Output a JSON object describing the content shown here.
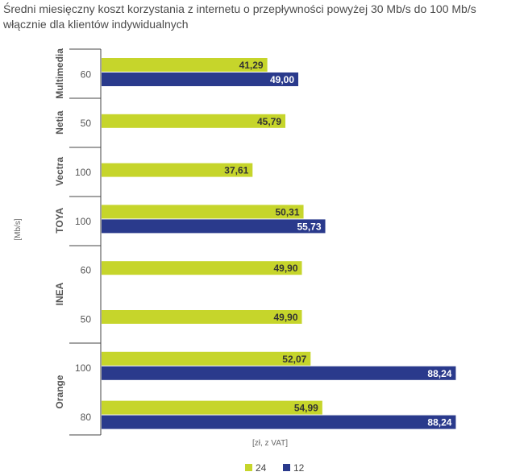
{
  "title": "Średni miesięczny koszt korzystania z internetu o przepływności powyżej 30 Mb/s do 100 Mb/s włącznie dla klientów indywidualnych",
  "colors": {
    "s24": "#c6d52b",
    "s12": "#2a3a8c",
    "text": "#555555"
  },
  "chart_data": {
    "type": "bar",
    "orientation": "horizontal",
    "ylabel": "[Mb/s]",
    "xlabel": "[zł, z VAT]",
    "legend_position": "bottom",
    "series_names": [
      "24",
      "12"
    ],
    "xlim": [
      0,
      100
    ],
    "groups": [
      {
        "provider": "Multimedia",
        "rows": [
          {
            "speed": "60",
            "v24": 41.29,
            "l24": "41,29",
            "v12": 49.0,
            "l12": "49,00"
          }
        ]
      },
      {
        "provider": "Netia",
        "rows": [
          {
            "speed": "50",
            "v24": 45.79,
            "l24": "45,79",
            "v12": null,
            "l12": ""
          }
        ]
      },
      {
        "provider": "Vectra",
        "rows": [
          {
            "speed": "100",
            "v24": 37.61,
            "l24": "37,61",
            "v12": null,
            "l12": ""
          }
        ]
      },
      {
        "provider": "TOYA",
        "rows": [
          {
            "speed": "100",
            "v24": 50.31,
            "l24": "50,31",
            "v12": 55.73,
            "l12": "55,73"
          }
        ]
      },
      {
        "provider": "INEA",
        "rows": [
          {
            "speed": "60",
            "v24": 49.9,
            "l24": "49,90",
            "v12": null,
            "l12": ""
          },
          {
            "speed": "50",
            "v24": 49.9,
            "l24": "49,90",
            "v12": null,
            "l12": ""
          }
        ]
      },
      {
        "provider": "Orange",
        "rows": [
          {
            "speed": "100",
            "v24": 52.07,
            "l24": "52,07",
            "v12": 88.24,
            "l12": "88,24"
          },
          {
            "speed": "80",
            "v24": 54.99,
            "l24": "54,99",
            "v12": 88.24,
            "l12": "88,24"
          }
        ]
      }
    ]
  }
}
